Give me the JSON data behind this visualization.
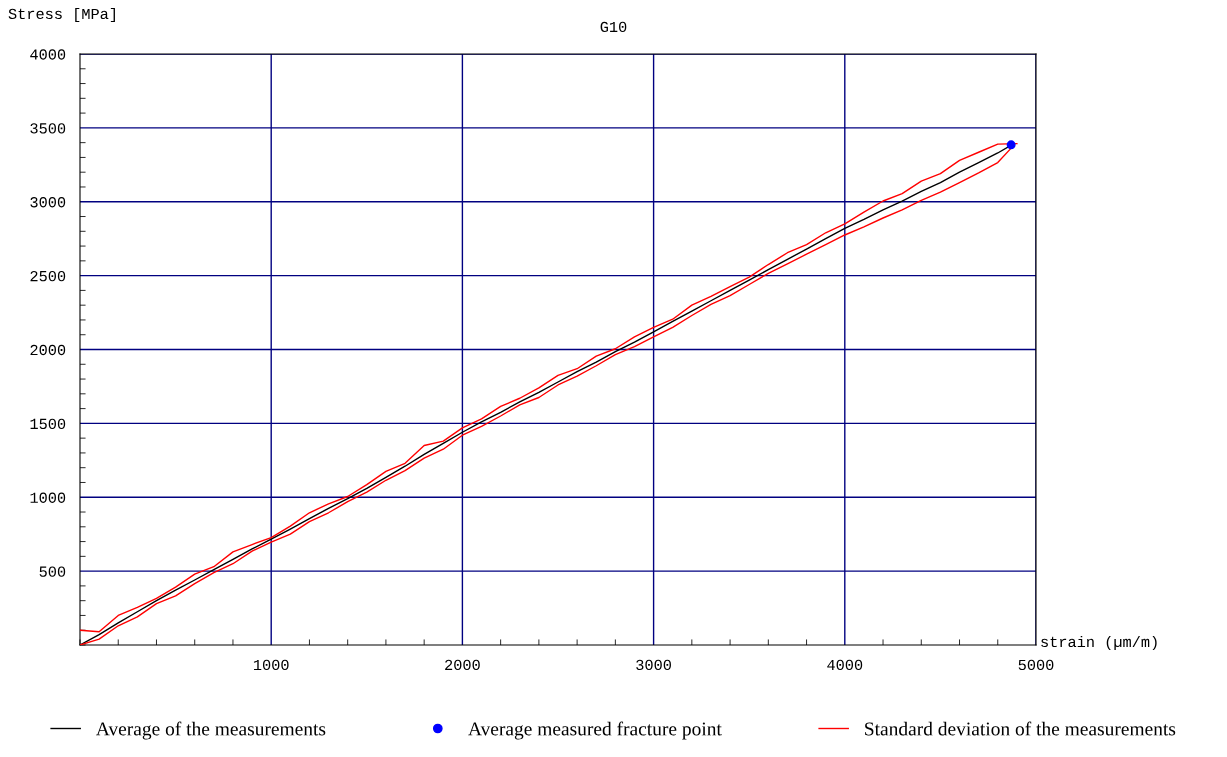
{
  "chart_data": {
    "type": "line",
    "title": "G10",
    "xlabel": "strain (µm/m)",
    "ylabel": "Stress [MPa]",
    "xlim": [
      0,
      5000
    ],
    "xticks": [
      1000,
      2000,
      3000,
      4000,
      5000
    ],
    "ylim": [
      0,
      4000
    ],
    "yticks": [
      500,
      1000,
      1500,
      2000,
      2500,
      3000,
      3500,
      4000
    ],
    "grid": true,
    "legend": "bottom",
    "marker": "none",
    "line_style": "solid",
    "x": [
      0,
      100,
      200,
      300,
      400,
      500,
      600,
      700,
      800,
      900,
      1000,
      1100,
      1200,
      1300,
      1400,
      1500,
      1600,
      1700,
      1800,
      1900,
      2000,
      2100,
      2200,
      2300,
      2400,
      2500,
      2600,
      2700,
      2800,
      2900,
      3000,
      3100,
      3200,
      3300,
      3400,
      3500,
      3600,
      3700,
      3800,
      3900,
      4000,
      4100,
      4200,
      4300,
      4400,
      4500,
      4600,
      4700,
      4800,
      4870
    ],
    "series": [
      {
        "name": "Average of the measurements",
        "color": "#000000",
        "values": [
          0,
          70,
          150,
          225,
          300,
          372,
          440,
          510,
          580,
          650,
          717,
          785,
          855,
          925,
          990,
          1060,
          1135,
          1210,
          1290,
          1365,
          1440,
          1510,
          1575,
          1645,
          1710,
          1780,
          1850,
          1915,
          1985,
          2050,
          2120,
          2190,
          2260,
          2330,
          2400,
          2470,
          2540,
          2610,
          2680,
          2750,
          2820,
          2880,
          2945,
          3005,
          3070,
          3130,
          3200,
          3265,
          3330,
          3383
        ]
      },
      {
        "name": "Average measured fracture point",
        "type": "scatter",
        "marker": "circle",
        "color": "#0000ff",
        "x": [
          4870
        ],
        "values": [
          3385
        ]
      },
      {
        "name": "Standard deviation of the measurements",
        "color": "#ff0000",
        "x": [
          0,
          100,
          200,
          300,
          400,
          500,
          600,
          700,
          800,
          900,
          1000,
          1100,
          1200,
          1300,
          1400,
          1500,
          1600,
          1700,
          1800,
          1900,
          2000,
          2100,
          2200,
          2300,
          2400,
          2500,
          2600,
          2700,
          2800,
          2900,
          3000,
          3100,
          3200,
          3300,
          3400,
          3500,
          3600,
          3700,
          3800,
          3900,
          4000,
          4100,
          4200,
          4300,
          4400,
          4500,
          4600,
          4700,
          4800,
          4900
        ],
        "values": [
          100,
          90,
          200,
          255,
          315,
          392,
          480,
          530,
          630,
          680,
          727,
          805,
          895,
          955,
          1005,
          1085,
          1175,
          1230,
          1350,
          1380,
          1470,
          1530,
          1615,
          1670,
          1740,
          1825,
          1870,
          1955,
          2005,
          2085,
          2150,
          2205,
          2300,
          2360,
          2425,
          2490,
          2575,
          2655,
          2710,
          2790,
          2850,
          2930,
          3005,
          3055,
          3140,
          3190,
          3280,
          3335,
          3390,
          3393
        ]
      },
      {
        "color": "#ff0000",
        "values": [
          0,
          40,
          130,
          190,
          280,
          332,
          415,
          490,
          550,
          635,
          697,
          750,
          835,
          895,
          970,
          1035,
          1115,
          1180,
          1265,
          1325,
          1420,
          1480,
          1550,
          1625,
          1675,
          1760,
          1820,
          1890,
          1965,
          2020,
          2085,
          2150,
          2230,
          2305,
          2365,
          2440,
          2515,
          2580,
          2645,
          2710,
          2775,
          2830,
          2890,
          2945,
          3010,
          3065,
          3130,
          3195,
          3265,
          3363
        ]
      }
    ]
  }
}
